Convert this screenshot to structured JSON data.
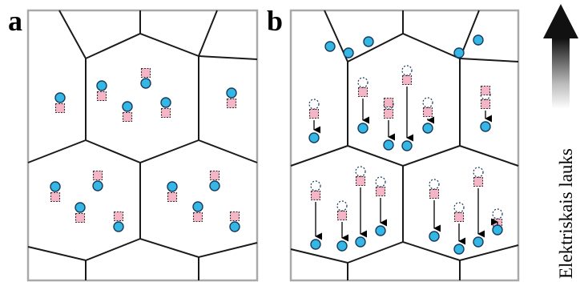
{
  "panels": [
    {
      "letter": "a"
    },
    {
      "letter": "b"
    }
  ],
  "field_arrow": {
    "label": "Elektriskais lauks",
    "direction": "up"
  },
  "colors": {
    "electron_fill": "#35b7e5",
    "electron_stroke": "#1a3a5a",
    "hole_fill": "#f4b6c6",
    "hole_stroke": "#3a2a2a",
    "panel_frame": "#a9a9a9",
    "cell_edges": "#1a1a1a",
    "field_arrow": "#111111"
  },
  "legend_items": [
    {
      "name": "electron",
      "shape": "circle"
    },
    {
      "name": "hole",
      "shape": "square"
    }
  ]
}
